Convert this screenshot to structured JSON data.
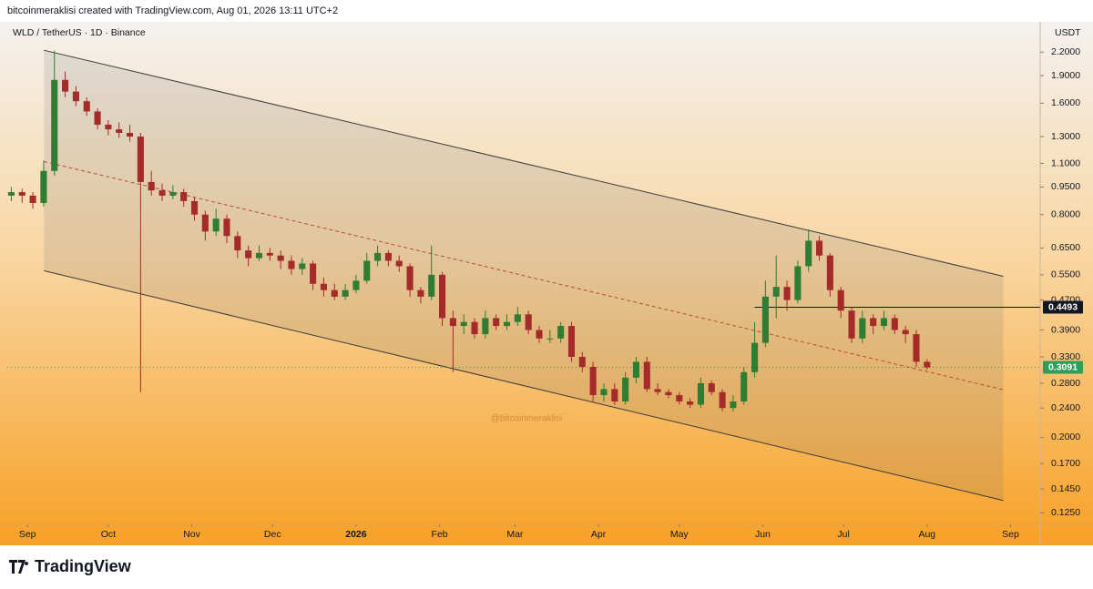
{
  "header": "bitcoinmeraklisi created with TradingView.com, Aug 01, 2026 13:11 UTC+2",
  "brand": "TradingView",
  "chart_data": {
    "type": "candlestick",
    "title": "WLD / TetherUS · 1D · Binance",
    "y_label": "USDT",
    "watermark": "@bitcoinmeraklisi",
    "log_scale": true,
    "up_color": "#2e7d32",
    "down_color": "#a52a2a",
    "x": [
      -6,
      -2,
      2,
      6,
      10,
      14,
      18,
      22,
      26,
      30,
      34,
      38,
      42,
      46,
      50,
      54,
      58,
      62,
      66,
      70,
      74,
      78,
      82,
      86,
      90,
      94,
      98,
      102,
      106,
      110,
      114,
      118,
      122,
      126,
      130,
      134,
      138,
      142,
      146,
      150,
      154,
      158,
      162,
      166,
      170,
      174,
      178,
      182,
      186,
      190,
      194,
      198,
      202,
      206,
      210,
      214,
      218,
      222,
      226,
      230,
      234,
      238,
      242,
      246,
      250,
      254,
      258,
      262,
      266,
      270,
      274,
      278,
      282,
      286,
      290,
      294,
      298,
      302,
      306,
      310,
      314,
      318,
      322,
      326,
      330,
      334
    ],
    "open": [
      0.9,
      0.92,
      0.9,
      0.86,
      1.05,
      1.85,
      1.72,
      1.62,
      1.52,
      1.4,
      1.36,
      1.33,
      1.3,
      0.98,
      0.93,
      0.9,
      0.92,
      0.87,
      0.8,
      0.72,
      0.78,
      0.7,
      0.64,
      0.61,
      0.63,
      0.62,
      0.6,
      0.57,
      0.59,
      0.52,
      0.5,
      0.48,
      0.5,
      0.53,
      0.6,
      0.63,
      0.6,
      0.58,
      0.5,
      0.48,
      0.55,
      0.42,
      0.4,
      0.41,
      0.38,
      0.42,
      0.4,
      0.41,
      0.43,
      0.39,
      0.37,
      0.37,
      0.4,
      0.33,
      0.31,
      0.26,
      0.27,
      0.25,
      0.29,
      0.32,
      0.27,
      0.265,
      0.26,
      0.25,
      0.245,
      0.28,
      0.265,
      0.24,
      0.25,
      0.3,
      0.36,
      0.48,
      0.51,
      0.47,
      0.58,
      0.68,
      0.62,
      0.5,
      0.44,
      0.37,
      0.42,
      0.4,
      0.42,
      0.39,
      0.38,
      0.32
    ],
    "high": [
      0.95,
      0.94,
      0.92,
      1.12,
      2.22,
      1.95,
      1.78,
      1.66,
      1.55,
      1.44,
      1.42,
      1.4,
      1.33,
      1.05,
      0.97,
      0.96,
      0.94,
      0.89,
      0.82,
      0.83,
      0.8,
      0.72,
      0.66,
      0.66,
      0.65,
      0.64,
      0.62,
      0.61,
      0.6,
      0.54,
      0.52,
      0.52,
      0.55,
      0.63,
      0.66,
      0.64,
      0.62,
      0.59,
      0.51,
      0.66,
      0.56,
      0.44,
      0.43,
      0.42,
      0.44,
      0.43,
      0.43,
      0.45,
      0.44,
      0.4,
      0.39,
      0.41,
      0.41,
      0.34,
      0.32,
      0.28,
      0.28,
      0.3,
      0.33,
      0.33,
      0.28,
      0.27,
      0.265,
      0.255,
      0.29,
      0.285,
      0.27,
      0.26,
      0.31,
      0.41,
      0.53,
      0.62,
      0.53,
      0.6,
      0.73,
      0.7,
      0.63,
      0.51,
      0.45,
      0.44,
      0.43,
      0.44,
      0.43,
      0.4,
      0.39,
      0.325
    ],
    "low": [
      0.87,
      0.86,
      0.83,
      0.84,
      1.02,
      1.66,
      1.57,
      1.48,
      1.36,
      1.31,
      1.29,
      1.26,
      0.265,
      0.9,
      0.87,
      0.88,
      0.84,
      0.77,
      0.68,
      0.7,
      0.67,
      0.61,
      0.58,
      0.6,
      0.6,
      0.57,
      0.55,
      0.55,
      0.5,
      0.48,
      0.47,
      0.47,
      0.49,
      0.52,
      0.58,
      0.58,
      0.56,
      0.48,
      0.46,
      0.47,
      0.4,
      0.3,
      0.38,
      0.37,
      0.37,
      0.39,
      0.39,
      0.4,
      0.38,
      0.36,
      0.36,
      0.36,
      0.32,
      0.3,
      0.25,
      0.25,
      0.245,
      0.245,
      0.28,
      0.265,
      0.26,
      0.255,
      0.245,
      0.24,
      0.24,
      0.26,
      0.235,
      0.235,
      0.245,
      0.29,
      0.35,
      0.42,
      0.44,
      0.46,
      0.56,
      0.6,
      0.48,
      0.42,
      0.36,
      0.36,
      0.38,
      0.39,
      0.38,
      0.36,
      0.31,
      0.305
    ],
    "close": [
      0.92,
      0.9,
      0.86,
      1.05,
      1.85,
      1.72,
      1.62,
      1.52,
      1.4,
      1.36,
      1.33,
      1.3,
      0.98,
      0.93,
      0.9,
      0.92,
      0.87,
      0.8,
      0.72,
      0.78,
      0.7,
      0.64,
      0.61,
      0.63,
      0.62,
      0.6,
      0.57,
      0.59,
      0.52,
      0.5,
      0.48,
      0.5,
      0.53,
      0.6,
      0.63,
      0.6,
      0.58,
      0.5,
      0.48,
      0.55,
      0.42,
      0.4,
      0.41,
      0.38,
      0.42,
      0.4,
      0.41,
      0.43,
      0.39,
      0.37,
      0.37,
      0.4,
      0.33,
      0.31,
      0.26,
      0.27,
      0.25,
      0.29,
      0.32,
      0.27,
      0.265,
      0.26,
      0.25,
      0.245,
      0.28,
      0.265,
      0.24,
      0.25,
      0.3,
      0.36,
      0.48,
      0.51,
      0.47,
      0.58,
      0.68,
      0.62,
      0.5,
      0.44,
      0.37,
      0.42,
      0.4,
      0.42,
      0.39,
      0.38,
      0.32,
      0.3091
    ],
    "xlim": [
      -7.5,
      376
    ],
    "xticks": [
      {
        "value": 0,
        "label": "Sep"
      },
      {
        "value": 30,
        "label": "Oct"
      },
      {
        "value": 61,
        "label": "Nov"
      },
      {
        "value": 91,
        "label": "Dec"
      },
      {
        "value": 122,
        "label": "2026"
      },
      {
        "value": 153,
        "label": "Feb"
      },
      {
        "value": 181,
        "label": "Mar"
      },
      {
        "value": 212,
        "label": "Apr"
      },
      {
        "value": 242,
        "label": "May"
      },
      {
        "value": 273,
        "label": "Jun"
      },
      {
        "value": 303,
        "label": "Jul"
      },
      {
        "value": 334,
        "label": "Aug"
      },
      {
        "value": 365,
        "label": "Sep"
      }
    ],
    "ylim": [
      0.117,
      2.64
    ],
    "yticks": [
      {
        "value": 2.2,
        "label": "2.2000"
      },
      {
        "value": 1.9,
        "label": "1.9000"
      },
      {
        "value": 1.6,
        "label": "1.6000"
      },
      {
        "value": 1.3,
        "label": "1.3000"
      },
      {
        "value": 1.1,
        "label": "1.1000"
      },
      {
        "value": 0.95,
        "label": "0.9500"
      },
      {
        "value": 0.8,
        "label": "0.8000"
      },
      {
        "value": 0.65,
        "label": "0.6500"
      },
      {
        "value": 0.55,
        "label": "0.5500"
      },
      {
        "value": 0.47,
        "label": "0.4700"
      },
      {
        "value": 0.39,
        "label": "0.3900"
      },
      {
        "value": 0.33,
        "label": "0.3300"
      },
      {
        "value": 0.28,
        "label": "0.2800"
      },
      {
        "value": 0.24,
        "label": "0.2400"
      },
      {
        "value": 0.2,
        "label": "0.2000"
      },
      {
        "value": 0.17,
        "label": "0.1700"
      },
      {
        "value": 0.145,
        "label": "0.1450"
      },
      {
        "value": 0.125,
        "label": "0.1250"
      }
    ],
    "channel": {
      "x": [
        6.1,
        362.3
      ],
      "upper": [
        2.225,
        0.545
      ],
      "middle": [
        1.113,
        0.269
      ],
      "lower": [
        0.564,
        0.135
      ]
    },
    "level": {
      "value": 0.4493,
      "x_start": 270
    },
    "last_price": 0.3091,
    "last_price_color": "#2e9e5b"
  }
}
